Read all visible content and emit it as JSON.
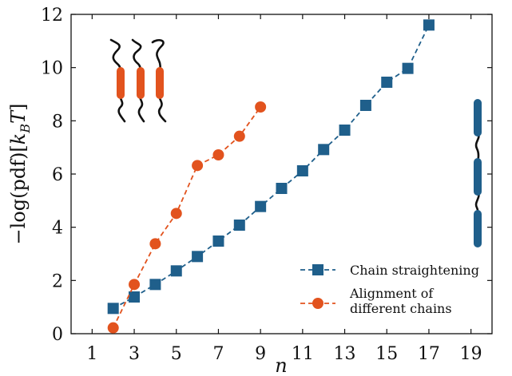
{
  "chart_data": {
    "type": "line",
    "xlabel": "n",
    "ylabel": "−log(pdf)[k_BT]",
    "ylabel_parts": {
      "prefix": "−log(pdf)[",
      "main": "k",
      "sub": "B",
      "var": "T",
      "suffix": "]"
    },
    "xlim": [
      0,
      20
    ],
    "ylim": [
      0,
      12
    ],
    "xticks": [
      1,
      3,
      5,
      7,
      9,
      11,
      13,
      15,
      17,
      19
    ],
    "yticks": [
      0,
      2,
      4,
      6,
      8,
      10,
      12
    ],
    "grid": false,
    "legend_position": "bottom-right",
    "series": [
      {
        "name": "Chain straightening",
        "color": "#1f5f8b",
        "marker": "square",
        "linestyle": "dashed",
        "x": [
          2,
          3,
          4,
          5,
          6,
          7,
          8,
          9,
          10,
          11,
          12,
          13,
          14,
          15,
          16,
          17
        ],
        "y": [
          0.95,
          1.38,
          1.85,
          2.36,
          2.9,
          3.48,
          4.08,
          4.78,
          5.46,
          6.12,
          6.92,
          7.65,
          8.58,
          9.45,
          9.97,
          11.6
        ]
      },
      {
        "name": "Alignment of different chains",
        "name_lines": [
          "Alignment of",
          "different chains"
        ],
        "color": "#e2531e",
        "marker": "circle",
        "linestyle": "dashed",
        "x": [
          2,
          3,
          4,
          5,
          6,
          7,
          8,
          9
        ],
        "y": [
          0.22,
          1.85,
          3.38,
          4.52,
          6.32,
          6.72,
          7.42,
          8.52
        ]
      }
    ],
    "insets": [
      {
        "name": "aligned-chains-illustration",
        "color": "#e2531e",
        "position": "top-left"
      },
      {
        "name": "straightened-chain-illustration",
        "color": "#1f5f8b",
        "position": "right"
      }
    ]
  }
}
